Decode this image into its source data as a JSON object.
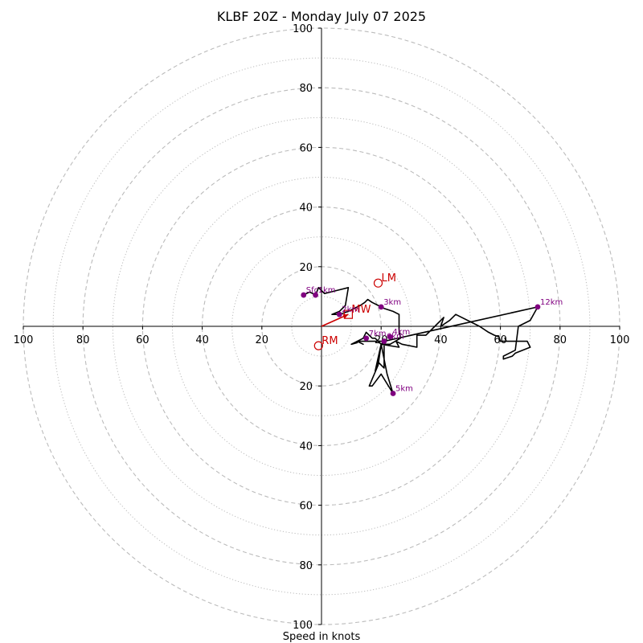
{
  "chart_data": {
    "type": "hodograph",
    "title": "KLBF 20Z - Monday July 07 2025",
    "xlabel": "Speed in knots",
    "xlim": [
      -100,
      100
    ],
    "ylim": [
      -100,
      100
    ],
    "ring_major": [
      20,
      40,
      60,
      80,
      100
    ],
    "ring_minor": [
      10,
      30,
      50,
      70,
      90
    ],
    "x_tick_values": [
      -100,
      -80,
      -60,
      -40,
      -20,
      20,
      40,
      60,
      80,
      100
    ],
    "x_tick_labels": [
      "100",
      "80",
      "60",
      "40",
      "20",
      "20",
      "40",
      "60",
      "80",
      "100"
    ],
    "y_tick_values": [
      100,
      80,
      60,
      40,
      20,
      -20,
      -40,
      -60,
      -80,
      -100
    ],
    "y_tick_labels": [
      "100",
      "80",
      "60",
      "40",
      "20",
      "20",
      "40",
      "60",
      "80",
      "100"
    ],
    "colors": {
      "trace": "#000000",
      "height_marker": "#800080",
      "motion": "#cc0000",
      "grid": "#bbbbbb"
    },
    "hodograph_trace": [
      [
        -6,
        10.5
      ],
      [
        -4,
        11.5
      ],
      [
        -2,
        10.5
      ],
      [
        -1,
        13
      ],
      [
        0,
        12
      ],
      [
        1,
        11
      ],
      [
        5,
        12
      ],
      [
        9,
        13
      ],
      [
        8,
        7
      ],
      [
        6,
        5
      ],
      [
        3.5,
        4
      ],
      [
        6,
        4
      ],
      [
        9,
        5
      ],
      [
        11,
        6
      ],
      [
        13,
        7
      ],
      [
        14.5,
        8
      ],
      [
        15.5,
        9
      ],
      [
        17,
        8
      ],
      [
        19,
        7
      ],
      [
        21,
        6
      ],
      [
        24,
        5
      ],
      [
        26,
        4
      ],
      [
        26,
        -1
      ],
      [
        26.5,
        -4
      ],
      [
        23,
        -6
      ],
      [
        20,
        -6
      ],
      [
        18,
        -4
      ],
      [
        17,
        -4
      ],
      [
        15,
        -2
      ],
      [
        14,
        -4
      ],
      [
        12,
        -5
      ],
      [
        14,
        -6
      ],
      [
        12,
        -5
      ],
      [
        10,
        -6
      ],
      [
        12,
        -5.5
      ],
      [
        12,
        -5
      ],
      [
        21,
        -5
      ],
      [
        21,
        -5
      ],
      [
        20,
        -6
      ],
      [
        26,
        -7
      ],
      [
        25,
        -5
      ],
      [
        27,
        -6
      ],
      [
        32,
        -7
      ],
      [
        32,
        -3
      ],
      [
        35,
        -3
      ],
      [
        38,
        0
      ],
      [
        41,
        3
      ],
      [
        40,
        0
      ],
      [
        43,
        2
      ],
      [
        45,
        4
      ],
      [
        53,
        0
      ],
      [
        56,
        -2
      ],
      [
        58,
        -3
      ],
      [
        59.5,
        -3.5
      ],
      [
        60,
        -5
      ],
      [
        62,
        -5
      ],
      [
        61.5,
        -4
      ],
      [
        62,
        -5
      ],
      [
        69,
        -5
      ],
      [
        70,
        -7
      ],
      [
        65,
        -9
      ],
      [
        64,
        -10
      ],
      [
        61,
        -11
      ],
      [
        61,
        -10
      ],
      [
        65,
        -8
      ],
      [
        66,
        0
      ],
      [
        70,
        2
      ],
      [
        72.5,
        6.5
      ],
      [
        21,
        -5
      ],
      [
        21,
        -14
      ],
      [
        19,
        -12
      ],
      [
        18,
        -15
      ],
      [
        20,
        -6
      ],
      [
        22,
        -16
      ],
      [
        24,
        -22.5
      ],
      [
        20,
        -16
      ],
      [
        17,
        -20
      ],
      [
        16,
        -20
      ],
      [
        19,
        -13
      ],
      [
        20,
        -6
      ]
    ],
    "height_markers": [
      {
        "label": "Sfc",
        "u": -6,
        "v": 10.5
      },
      {
        "label": "1km",
        "u": -2,
        "v": 10.5
      },
      {
        "label": "2km",
        "u": 6,
        "v": 4
      },
      {
        "label": "3km",
        "u": 20,
        "v": 6.5
      },
      {
        "label": "4km",
        "u": 23,
        "v": -3.5
      },
      {
        "label": "6km",
        "u": 21,
        "v": -5
      },
      {
        "label": "7km",
        "u": 15,
        "v": -4
      },
      {
        "label": "5km",
        "u": 24,
        "v": -22.5
      },
      {
        "label": "12km",
        "u": 72.5,
        "v": 6.5
      }
    ],
    "storm_motions": [
      {
        "label": "LM",
        "u": 19,
        "v": 14.5
      },
      {
        "label": "RM",
        "u": -1,
        "v": -6.5
      },
      {
        "label": "MW",
        "u": 9,
        "v": 4
      }
    ],
    "bunkers_vector": {
      "u": 9,
      "v": 4
    }
  }
}
